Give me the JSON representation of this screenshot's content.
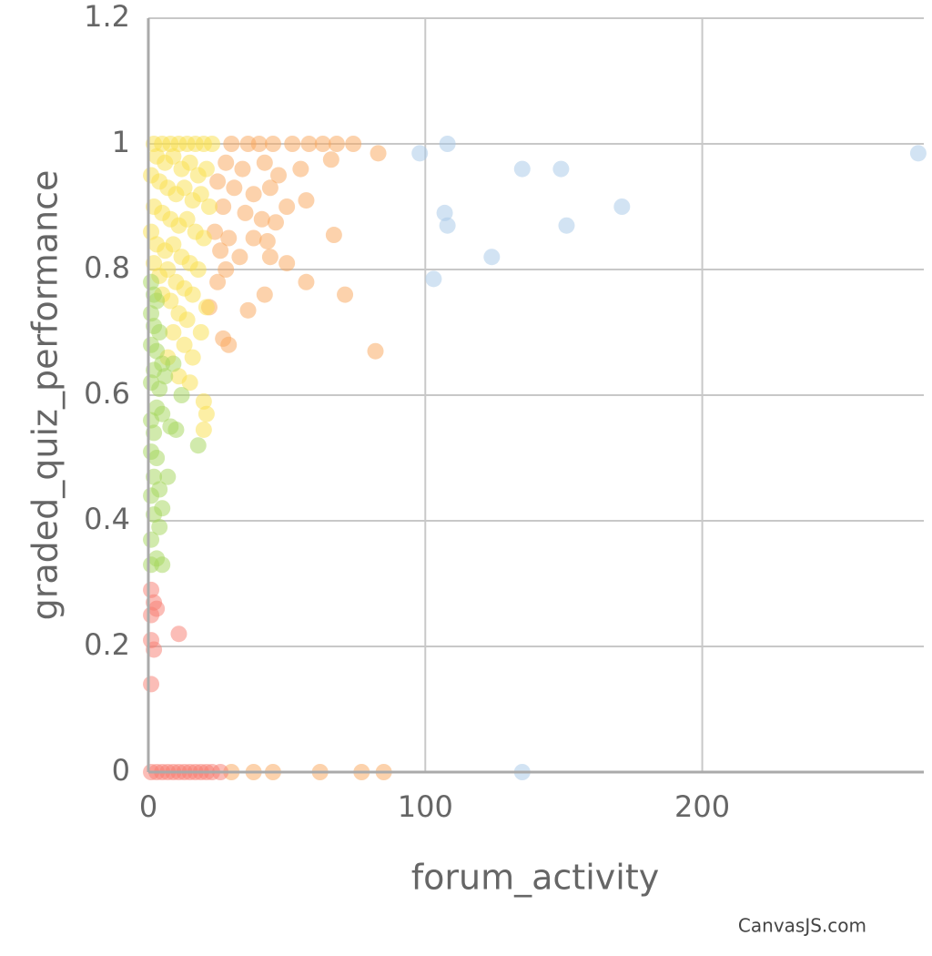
{
  "chart_data": {
    "type": "scatter",
    "x_label": "forum_activity",
    "y_label": "graded_quiz_performance",
    "credit": "CanvasJS.com",
    "xlim": [
      0,
      280
    ],
    "xticks": [
      0,
      100,
      200
    ],
    "ylim": [
      0,
      1.2
    ],
    "yticks": [
      0,
      0.2,
      0.4,
      0.6,
      0.8,
      1,
      1.2
    ],
    "grid": true,
    "series": [
      {
        "color": "#a6c8e8",
        "x": [
          98,
          108,
          107,
          108,
          135,
          149,
          151,
          171,
          124,
          103,
          135,
          278
        ],
        "values": [
          0.985,
          1,
          0.89,
          0.87,
          0.96,
          0.96,
          0.87,
          0.9,
          0.82,
          0.785,
          0,
          0.985
        ]
      },
      {
        "color": "#f9a55a",
        "x": [
          30,
          36,
          40,
          45,
          52,
          58,
          63,
          68,
          74,
          28,
          34,
          42,
          47,
          55,
          66,
          83,
          25,
          31,
          38,
          44,
          50,
          57,
          27,
          35,
          41,
          46,
          24,
          29,
          38,
          43,
          67,
          26,
          33,
          44,
          50,
          28,
          25,
          57,
          42,
          71,
          36,
          27,
          29,
          82,
          22,
          30,
          38,
          45,
          62,
          77,
          85
        ],
        "values": [
          1,
          1,
          1,
          1,
          1,
          1,
          1,
          1,
          1,
          0.97,
          0.96,
          0.97,
          0.95,
          0.96,
          0.975,
          0.985,
          0.94,
          0.93,
          0.92,
          0.93,
          0.9,
          0.91,
          0.9,
          0.89,
          0.88,
          0.875,
          0.86,
          0.85,
          0.85,
          0.845,
          0.855,
          0.83,
          0.82,
          0.82,
          0.81,
          0.8,
          0.78,
          0.78,
          0.76,
          0.76,
          0.735,
          0.69,
          0.68,
          0.67,
          0.74,
          0,
          0,
          0,
          0,
          0,
          0
        ]
      },
      {
        "color": "#f9e04b",
        "x": [
          2,
          5,
          8,
          11,
          14,
          17,
          20,
          23,
          3,
          6,
          9,
          12,
          15,
          18,
          21,
          1,
          4,
          7,
          10,
          13,
          16,
          19,
          22,
          2,
          5,
          8,
          11,
          14,
          17,
          20,
          1,
          3,
          6,
          9,
          12,
          15,
          18,
          2,
          4,
          7,
          10,
          13,
          16,
          21,
          5,
          8,
          11,
          14,
          19,
          9,
          13,
          16,
          7,
          11,
          15,
          20,
          21,
          20
        ],
        "values": [
          1,
          1,
          1,
          1,
          1,
          1,
          1,
          1,
          0.98,
          0.97,
          0.98,
          0.96,
          0.97,
          0.95,
          0.96,
          0.95,
          0.94,
          0.93,
          0.92,
          0.93,
          0.91,
          0.92,
          0.9,
          0.9,
          0.89,
          0.88,
          0.87,
          0.88,
          0.86,
          0.85,
          0.86,
          0.84,
          0.83,
          0.84,
          0.82,
          0.81,
          0.8,
          0.81,
          0.79,
          0.8,
          0.78,
          0.77,
          0.76,
          0.74,
          0.76,
          0.75,
          0.73,
          0.72,
          0.7,
          0.7,
          0.68,
          0.66,
          0.66,
          0.63,
          0.62,
          0.59,
          0.57,
          0.545
        ]
      },
      {
        "color": "#a3d55a",
        "x": [
          1,
          2,
          3,
          1,
          2,
          4,
          1,
          3,
          5,
          2,
          1,
          4,
          6,
          9,
          3,
          1,
          5,
          2,
          8,
          12,
          10,
          18,
          1,
          3,
          2,
          7,
          4,
          1,
          5,
          2,
          4,
          1,
          3,
          5,
          1
        ],
        "values": [
          0.78,
          0.76,
          0.75,
          0.73,
          0.71,
          0.7,
          0.68,
          0.67,
          0.65,
          0.64,
          0.62,
          0.61,
          0.63,
          0.65,
          0.58,
          0.56,
          0.57,
          0.54,
          0.55,
          0.6,
          0.545,
          0.52,
          0.51,
          0.5,
          0.47,
          0.47,
          0.45,
          0.44,
          0.42,
          0.41,
          0.39,
          0.37,
          0.34,
          0.33,
          0.33
        ]
      },
      {
        "color": "#f87c70",
        "x": [
          1,
          2,
          3,
          1,
          11,
          1,
          2,
          1,
          1,
          3,
          5,
          7,
          9,
          11,
          13,
          15,
          17,
          19,
          21,
          23,
          26
        ],
        "values": [
          0.29,
          0.27,
          0.26,
          0.25,
          0.22,
          0.21,
          0.195,
          0.14,
          0,
          0,
          0,
          0,
          0,
          0,
          0,
          0,
          0,
          0,
          0,
          0,
          0
        ]
      }
    ]
  }
}
